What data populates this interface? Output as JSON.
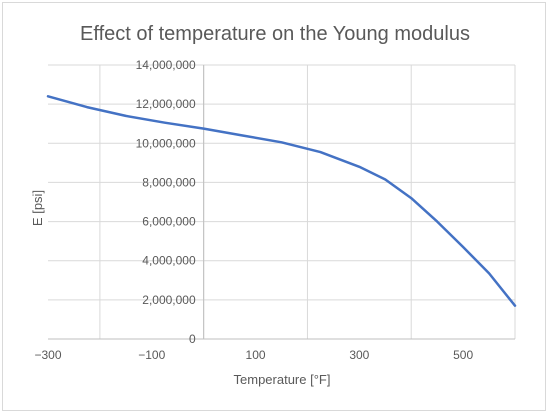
{
  "chart_data": {
    "type": "line",
    "title": "Effect of temperature on the Young modulus",
    "xlabel": "Temperature [°F]",
    "ylabel": "E [psi]",
    "xlim": [
      -300,
      600
    ],
    "ylim": [
      0,
      14000000
    ],
    "x_ticks": [
      -300,
      -100,
      100,
      300,
      500
    ],
    "x_tick_labels": [
      "−300",
      "−100",
      "100",
      "300",
      "500"
    ],
    "x_gridlines": [
      -200,
      0,
      200,
      400,
      600
    ],
    "y_ticks": [
      0,
      2000000,
      4000000,
      6000000,
      8000000,
      10000000,
      12000000,
      14000000
    ],
    "y_tick_labels": [
      "0",
      "2,000,000",
      "4,000,000",
      "6,000,000",
      "8,000,000",
      "10,000,000",
      "12,000,000",
      "14,000,000"
    ],
    "y_axis_at_x": 0,
    "grid": true,
    "series": [
      {
        "color": "#4472c4",
        "x": [
          -300,
          -225,
          -150,
          -75,
          0,
          75,
          150,
          225,
          300,
          350,
          400,
          450,
          500,
          550,
          600
        ],
        "y": [
          12400000,
          11850000,
          11400000,
          11050000,
          10750000,
          10400000,
          10050000,
          9550000,
          8800000,
          8150000,
          7200000,
          6000000,
          4700000,
          3350000,
          1700000
        ]
      }
    ]
  }
}
